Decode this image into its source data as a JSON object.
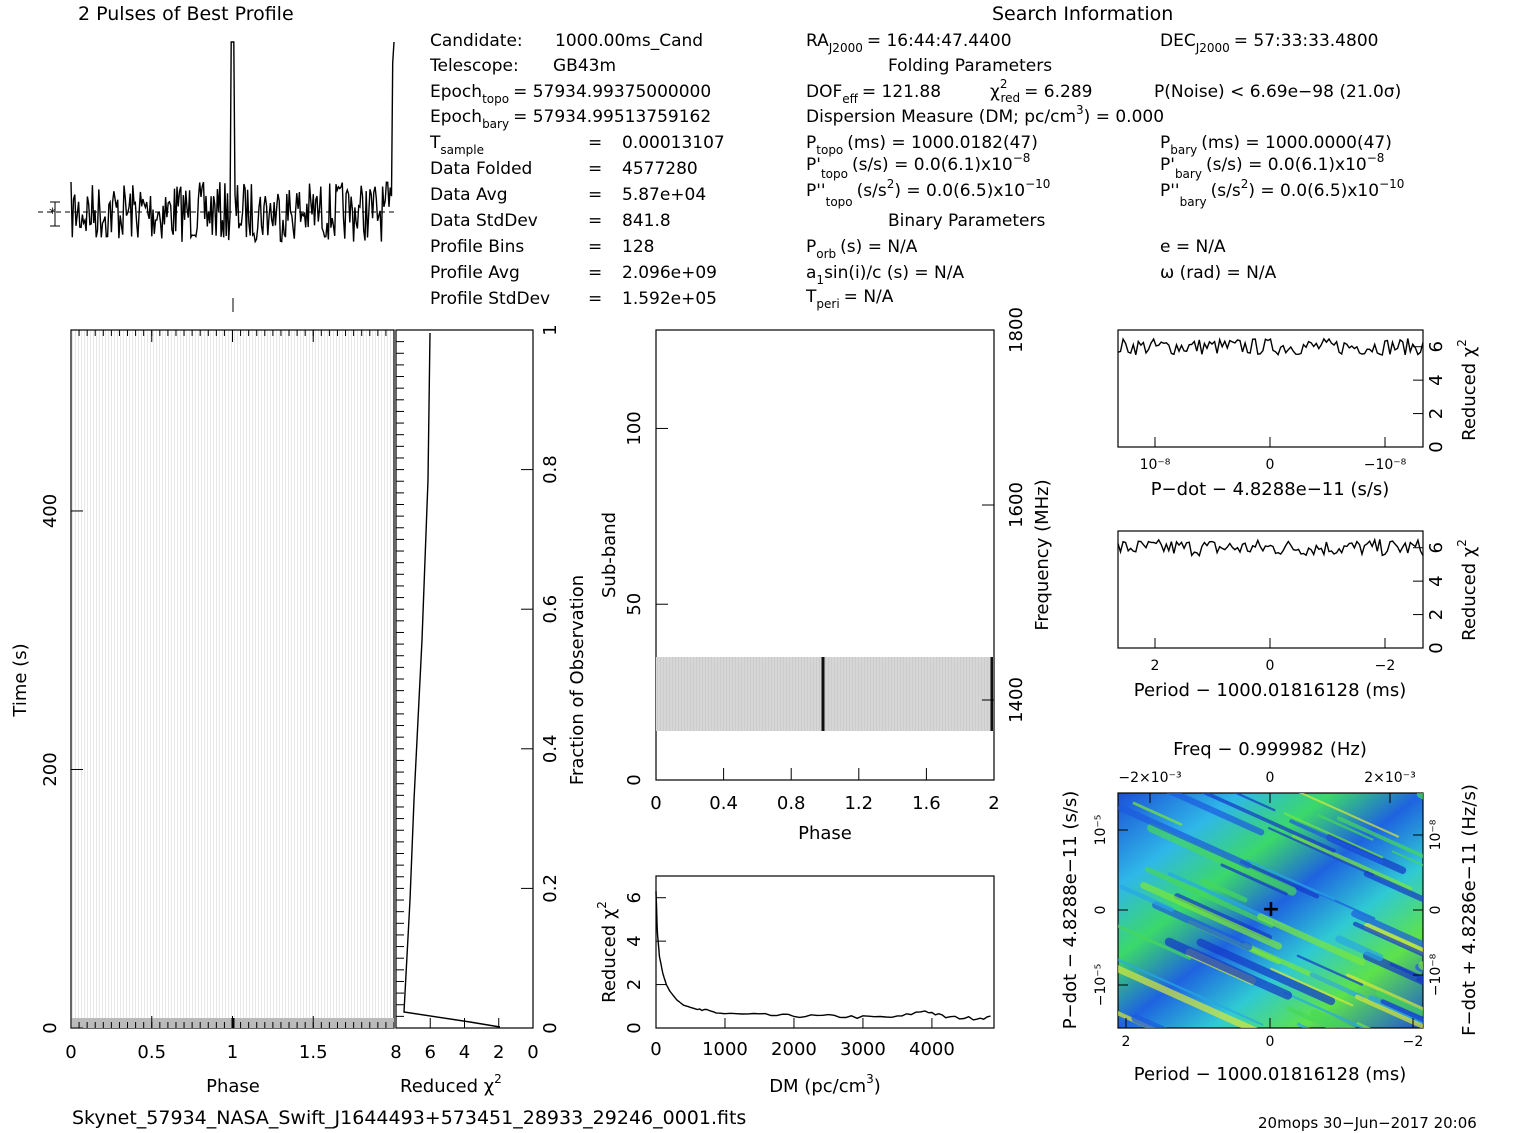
{
  "profile": {
    "title": "2 Pulses of Best Profile"
  },
  "search": {
    "title": "Search Information",
    "candidate_label": "Candidate:",
    "candidate": "1000.00ms_Cand",
    "telescope_label": "Telescope:",
    "telescope": "GB43m",
    "epoch_topo_label": "Epoch",
    "epoch_topo_sub": "topo",
    "epoch_topo": "= 57934.99375000000",
    "epoch_bary_label": "Epoch",
    "epoch_bary_sub": "bary",
    "epoch_bary": "= 57934.99513759162",
    "tsample_label": "T",
    "tsample_sub": "sample",
    "tsample_eq": "=",
    "tsample": "0.00013107",
    "folded_label": "Data Folded",
    "folded_eq": "=",
    "folded": "4577280",
    "avg_label": "Data Avg",
    "avg_eq": "=",
    "avg": "5.87e+04",
    "std_label": "Data StdDev",
    "std_eq": "=",
    "std": "841.8",
    "bins_label": "Profile Bins",
    "bins_eq": "=",
    "bins": "128",
    "pavg_label": "Profile Avg",
    "pavg_eq": "=",
    "pavg": "2.096e+09",
    "pstd_label": "Profile StdDev",
    "pstd_eq": "=",
    "pstd": "1.592e+05",
    "ra_label": "RA",
    "ra_sub": "J2000",
    "ra": "= 16:44:47.4400",
    "dec_label": "DEC",
    "dec_sub": "J2000",
    "dec": "= 57:33:33.4800",
    "folding_title": "Folding Parameters",
    "dof_label": "DOF",
    "dof_sub": "eff",
    "dof": "= 121.88",
    "chi_label": "χ",
    "chi_sup": "2",
    "chi_sub": "red",
    "chi": "= 6.289",
    "pnoise": "P(Noise) < 6.69e−98   (21.0σ)",
    "dm_line": "Dispersion Measure (DM; pc/cm",
    "dm_sup": "3",
    "dm_val": ") = 0.000",
    "ptopo_label": "P",
    "ptopo_sub": "topo",
    "ptopo": "(ms) =  1000.0182(47)",
    "pbary_label": "P",
    "pbary_sub": "bary",
    "pbary": "(ms) =  1000.0000(47)",
    "pdtopo_label": "P'",
    "pdtopo_sub": "topo",
    "pdtopo": "(s/s) = 0.0(6.1)x10",
    "pdtopo_exp": "−8",
    "pdbary_label": "P'",
    "pdbary_sub": "bary",
    "pdbary": "(s/s) = 0.0(6.1)x10",
    "pdbary_exp": "−8",
    "pddtopo_label": "P''",
    "pddtopo_sub": "topo",
    "pddtopo": "(s/s",
    "pddtopo_sup": "2",
    "pddtopo_rest": ") = 0.0(6.5)x10",
    "pddtopo_exp": "−10",
    "pddbary_label": "P''",
    "pddbary_sub": "bary",
    "pddbary": "(s/s",
    "pddbary_sup": "2",
    "pddbary_rest": ") = 0.0(6.5)x10",
    "pddbary_exp": "−10",
    "binary_title": "Binary Parameters",
    "porb_label": "P",
    "porb_sub": "orb",
    "porb": "(s) = N/A",
    "e": "e = N/A",
    "a1_label": "a",
    "a1_sub": "1",
    "a1": "sin(i)/c (s) = N/A",
    "omega": "ω (rad) = N/A",
    "tperi_label": "T",
    "tperi_sub": "peri",
    "tperi": "= N/A"
  },
  "footer": {
    "filename": "Skynet_57934_NASA_Swift_J1644493+573451_28933_29246_0001.fits",
    "stamp": "20mops 30−Jun−2017 20:06"
  },
  "chart_data": [
    {
      "type": "line",
      "panel": "profile",
      "title": "2 Pulses of Best Profile",
      "xlim": [
        0,
        2
      ],
      "peaks_at_phase": [
        1.0,
        2.0
      ],
      "note_baseline": "noise around mean"
    },
    {
      "type": "heatmap",
      "panel": "time-phase",
      "xlabel": "Phase",
      "ylabel": "Time (s)",
      "xlim": [
        0,
        2
      ],
      "ylim": [
        0,
        540
      ],
      "xticks": [
        "0",
        "0.5",
        "1",
        "1.5"
      ],
      "yticks": [
        "0",
        "200",
        "400"
      ]
    },
    {
      "type": "line",
      "panel": "reduced-chi2-vs-time",
      "xlabel": "Reduced χ2",
      "ylabel2": "Fraction of Observation",
      "xlim": [
        8,
        0
      ],
      "xticks": [
        "8",
        "6",
        "4",
        "2",
        "0"
      ],
      "yticks2": [
        "0",
        "0.2",
        "0.4",
        "0.6",
        "0.8",
        "1"
      ]
    },
    {
      "type": "heatmap",
      "panel": "subband-phase",
      "xlabel": "Phase",
      "ylabel": "Sub-band",
      "ylabel2": "Frequency (MHz)",
      "xlim": [
        0,
        2
      ],
      "ylim": [
        0,
        128
      ],
      "xticks": [
        "0",
        "0.4",
        "0.8",
        "1.2",
        "1.6",
        "2"
      ],
      "yticks": [
        "0",
        "50",
        "100"
      ],
      "yticks2": [
        "1400",
        "1600",
        "1800"
      ],
      "band_subbands": [
        14,
        35
      ]
    },
    {
      "type": "line",
      "panel": "dm-chi2",
      "xlabel": "DM (pc/cm",
      "xlabel_sup": "3",
      "xlabel_end": ")",
      "ylabel": "Reduced χ",
      "ylabel_sup": "2",
      "xlim": [
        0,
        4900
      ],
      "ylim": [
        0,
        7
      ],
      "xticks": [
        "0",
        "1000",
        "2000",
        "3000",
        "4000"
      ],
      "yticks": [
        "0",
        "2",
        "4",
        "6"
      ],
      "x": [
        0,
        20,
        50,
        100,
        150,
        200,
        300,
        400,
        600,
        800,
        1000,
        1500,
        2000,
        2500,
        3000,
        3500,
        3900,
        4200,
        4600,
        4900
      ],
      "y": [
        6.3,
        4.4,
        3.3,
        2.5,
        2.0,
        1.7,
        1.3,
        1.05,
        0.85,
        0.75,
        0.65,
        0.6,
        0.55,
        0.55,
        0.5,
        0.5,
        0.8,
        0.5,
        0.45,
        0.5
      ]
    },
    {
      "type": "line",
      "panel": "pdot-chi2",
      "xlabel": "P−dot − 4.8288e−11 (s/s)",
      "ylabel": "Reduced χ2",
      "ylim": [
        0,
        7
      ],
      "xticks": [
        "10⁻⁸",
        "0",
        "−10⁻⁸"
      ],
      "yticks": [
        "0",
        "2",
        "4",
        "6"
      ],
      "level": 6.0
    },
    {
      "type": "line",
      "panel": "period-chi2",
      "xlabel": "Period − 1000.01816128 (ms)",
      "ylabel": "Reduced χ2",
      "ylim": [
        0,
        7
      ],
      "xticks": [
        "2",
        "0",
        "−2"
      ],
      "yticks": [
        "0",
        "2",
        "4",
        "6"
      ],
      "level": 6.0
    },
    {
      "type": "heatmap",
      "panel": "period-pdot",
      "title": "Freq − 0.999982 (Hz)",
      "xlabel": "Period − 1000.01816128 (ms)",
      "ylabel": "P−dot − 4.8288e−11 (s/s)",
      "ylabel2": "F−dot + 4.8286e−11 (Hz/s)",
      "xticks": [
        "2",
        "0",
        "−2"
      ],
      "xticks_top": [
        "−2×10⁻³",
        "0",
        "2×10⁻³"
      ],
      "yticks": [
        "10⁻⁵",
        "0",
        "−10⁻⁵"
      ],
      "yticks2": [
        "10⁻⁸",
        "0",
        "−10⁻⁸"
      ]
    }
  ]
}
